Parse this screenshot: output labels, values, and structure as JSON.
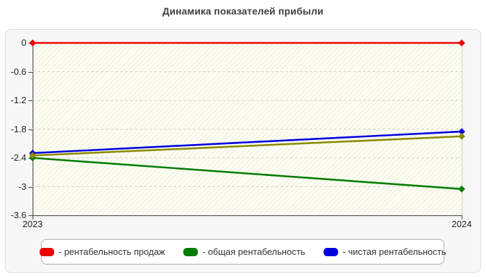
{
  "page": {
    "title": "Динамика показателей прибыли"
  },
  "chart_data": {
    "type": "line",
    "title": "Динамика показателей прибыли",
    "categories": [
      "2023",
      "2024"
    ],
    "series": [
      {
        "name": "рентабельность продаж",
        "color": "#ee0000",
        "values": [
          0,
          0
        ],
        "in_legend": true
      },
      {
        "name": "общая рентабельность",
        "color": "#007c00",
        "values": [
          -2.4,
          -3.05
        ],
        "in_legend": true
      },
      {
        "name": "",
        "color": "#8b8b00",
        "values": [
          -2.35,
          -1.95
        ],
        "in_legend": false
      },
      {
        "name": "чистая рентабельность",
        "color": "#0000e0",
        "values": [
          -2.3,
          -1.85
        ],
        "in_legend": true
      }
    ],
    "xlabel": "",
    "ylabel": "",
    "ylim": [
      -3.6,
      0
    ],
    "yticks": [
      0,
      -0.6,
      -1.2,
      -1.8,
      -2.4,
      -3,
      -3.6
    ],
    "ytick_labels": [
      "0",
      "-0.6",
      "-1.2",
      "-1.8",
      "-2.4",
      "-3",
      "-3.6"
    ],
    "grid": "horizontal-dashed",
    "grid_color": "#d4d4ca",
    "plot_background": "#fdfdf4",
    "hatch": "diagonal",
    "legend_position": "bottom"
  },
  "legend": {
    "items": [
      {
        "label": "- рентабельность продаж",
        "color": "#ee0000"
      },
      {
        "label": "- общая рентабельность",
        "color": "#007c00"
      },
      {
        "label": "- чистая рентабельность",
        "color": "#0000e0"
      }
    ]
  }
}
